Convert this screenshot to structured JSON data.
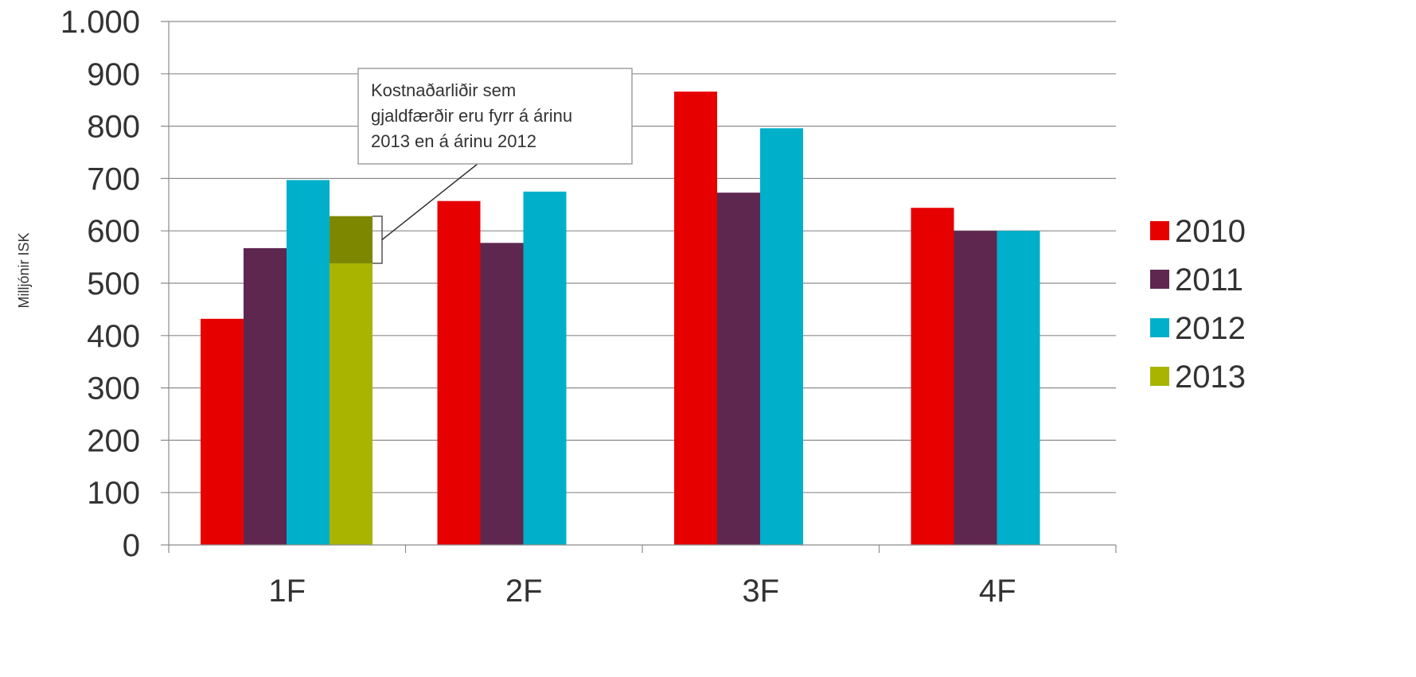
{
  "chart_data": {
    "type": "bar",
    "ylabel": "Milljónir ISK",
    "xlabel": "",
    "title": "",
    "ylim": [
      0,
      1000
    ],
    "yticks": [
      0,
      100,
      200,
      300,
      400,
      500,
      600,
      700,
      800,
      900,
      1000
    ],
    "ytick_labels": [
      "0",
      "100",
      "200",
      "300",
      "400",
      "500",
      "600",
      "700",
      "800",
      "900",
      "1.000"
    ],
    "categories": [
      "1F",
      "2F",
      "3F",
      "4F"
    ],
    "series": [
      {
        "name": "2010",
        "color": "#e60000",
        "values": [
          432,
          657,
          866,
          644
        ]
      },
      {
        "name": "2011",
        "color": "#5e2750",
        "values": [
          567,
          577,
          673,
          600
        ]
      },
      {
        "name": "2012",
        "color": "#00afca",
        "values": [
          697,
          675,
          796,
          600
        ]
      },
      {
        "name": "2013",
        "color": "#a8b400",
        "values": [
          628,
          null,
          null,
          null
        ]
      }
    ],
    "highlight": {
      "category": "1F",
      "series": "2013",
      "from": 538,
      "to": 628,
      "color": "#7e8700"
    },
    "annotation": {
      "lines": [
        "Kostnaðarliðir sem",
        "gjaldfærðir eru fyrr á árinu",
        "2013 en á árinu 2012"
      ]
    },
    "grid": true,
    "legend_position": "right"
  }
}
